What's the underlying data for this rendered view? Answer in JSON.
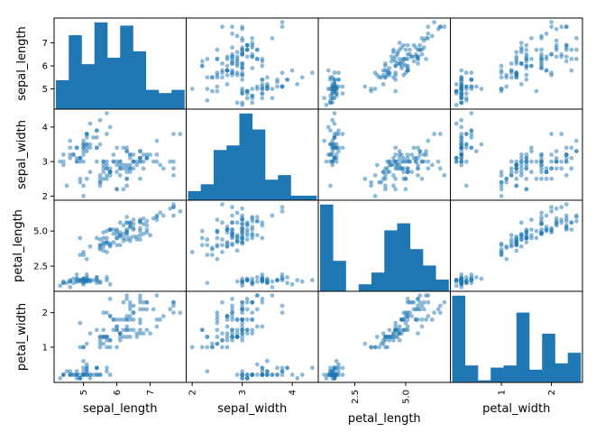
{
  "chart_data": {
    "type": "scatter-matrix",
    "variables": [
      "sepal_length",
      "sepal_width",
      "petal_length",
      "petal_width"
    ],
    "diagonal": "hist",
    "bins": 10,
    "color": "#1f77b4",
    "point_alpha": 0.5,
    "ticks": {
      "sepal_length": [
        5,
        6,
        7
      ],
      "sepal_width": [
        2,
        3,
        4
      ],
      "petal_length": [
        2.5,
        5.0
      ],
      "petal_width": [
        1,
        2
      ]
    },
    "tick_labels": {
      "sepal_length": [
        "5",
        "6",
        "7"
      ],
      "sepal_width": [
        "2",
        "3",
        "4"
      ],
      "petal_length": [
        "2.5",
        "5.0"
      ],
      "petal_width": [
        "1",
        "2"
      ]
    },
    "rows": [
      [
        5.1,
        3.5,
        1.4,
        0.2
      ],
      [
        4.9,
        3.0,
        1.4,
        0.2
      ],
      [
        4.7,
        3.2,
        1.3,
        0.2
      ],
      [
        4.6,
        3.1,
        1.5,
        0.2
      ],
      [
        5.0,
        3.6,
        1.4,
        0.2
      ],
      [
        5.4,
        3.9,
        1.7,
        0.4
      ],
      [
        4.6,
        3.4,
        1.4,
        0.3
      ],
      [
        5.0,
        3.4,
        1.5,
        0.2
      ],
      [
        4.4,
        2.9,
        1.4,
        0.2
      ],
      [
        4.9,
        3.1,
        1.5,
        0.1
      ],
      [
        5.4,
        3.7,
        1.5,
        0.2
      ],
      [
        4.8,
        3.4,
        1.6,
        0.2
      ],
      [
        4.8,
        3.0,
        1.4,
        0.1
      ],
      [
        4.3,
        3.0,
        1.1,
        0.1
      ],
      [
        5.8,
        4.0,
        1.2,
        0.2
      ],
      [
        5.7,
        4.4,
        1.5,
        0.4
      ],
      [
        5.4,
        3.9,
        1.3,
        0.4
      ],
      [
        5.1,
        3.5,
        1.4,
        0.3
      ],
      [
        5.7,
        3.8,
        1.7,
        0.3
      ],
      [
        5.1,
        3.8,
        1.5,
        0.3
      ],
      [
        5.4,
        3.4,
        1.7,
        0.2
      ],
      [
        5.1,
        3.7,
        1.5,
        0.4
      ],
      [
        4.6,
        3.6,
        1.0,
        0.2
      ],
      [
        5.1,
        3.3,
        1.7,
        0.5
      ],
      [
        4.8,
        3.4,
        1.9,
        0.2
      ],
      [
        5.0,
        3.0,
        1.6,
        0.2
      ],
      [
        5.0,
        3.4,
        1.6,
        0.4
      ],
      [
        5.2,
        3.5,
        1.5,
        0.2
      ],
      [
        5.2,
        3.4,
        1.4,
        0.2
      ],
      [
        4.7,
        3.2,
        1.6,
        0.2
      ],
      [
        4.8,
        3.1,
        1.6,
        0.2
      ],
      [
        5.4,
        3.4,
        1.5,
        0.4
      ],
      [
        5.2,
        4.1,
        1.5,
        0.1
      ],
      [
        5.5,
        4.2,
        1.4,
        0.2
      ],
      [
        4.9,
        3.1,
        1.5,
        0.1
      ],
      [
        5.0,
        3.2,
        1.2,
        0.2
      ],
      [
        5.5,
        3.5,
        1.3,
        0.2
      ],
      [
        4.9,
        3.1,
        1.5,
        0.1
      ],
      [
        4.4,
        3.0,
        1.3,
        0.2
      ],
      [
        5.1,
        3.4,
        1.5,
        0.2
      ],
      [
        5.0,
        3.5,
        1.3,
        0.3
      ],
      [
        4.5,
        2.3,
        1.3,
        0.3
      ],
      [
        4.4,
        3.2,
        1.3,
        0.2
      ],
      [
        5.0,
        3.5,
        1.6,
        0.6
      ],
      [
        5.1,
        3.8,
        1.9,
        0.4
      ],
      [
        4.8,
        3.0,
        1.4,
        0.3
      ],
      [
        5.1,
        3.8,
        1.6,
        0.2
      ],
      [
        4.6,
        3.2,
        1.4,
        0.2
      ],
      [
        5.3,
        3.7,
        1.5,
        0.2
      ],
      [
        5.0,
        3.3,
        1.4,
        0.2
      ],
      [
        7.0,
        3.2,
        4.7,
        1.4
      ],
      [
        6.4,
        3.2,
        4.5,
        1.5
      ],
      [
        6.9,
        3.1,
        4.9,
        1.5
      ],
      [
        5.5,
        2.3,
        4.0,
        1.3
      ],
      [
        6.5,
        2.8,
        4.6,
        1.5
      ],
      [
        5.7,
        2.8,
        4.5,
        1.3
      ],
      [
        6.3,
        3.3,
        4.7,
        1.6
      ],
      [
        4.9,
        2.4,
        3.3,
        1.0
      ],
      [
        6.6,
        2.9,
        4.6,
        1.3
      ],
      [
        5.2,
        2.7,
        3.9,
        1.4
      ],
      [
        5.0,
        2.0,
        3.5,
        1.0
      ],
      [
        5.9,
        3.0,
        4.2,
        1.5
      ],
      [
        6.0,
        2.2,
        4.0,
        1.0
      ],
      [
        6.1,
        2.9,
        4.7,
        1.4
      ],
      [
        5.6,
        2.9,
        3.6,
        1.3
      ],
      [
        6.7,
        3.1,
        4.4,
        1.4
      ],
      [
        5.6,
        3.0,
        4.5,
        1.5
      ],
      [
        5.8,
        2.7,
        4.1,
        1.0
      ],
      [
        6.2,
        2.2,
        4.5,
        1.5
      ],
      [
        5.6,
        2.5,
        3.9,
        1.1
      ],
      [
        5.9,
        3.2,
        4.8,
        1.8
      ],
      [
        6.1,
        2.8,
        4.0,
        1.3
      ],
      [
        6.3,
        2.5,
        4.9,
        1.5
      ],
      [
        6.1,
        2.8,
        4.7,
        1.2
      ],
      [
        6.4,
        2.9,
        4.3,
        1.3
      ],
      [
        6.6,
        3.0,
        4.4,
        1.4
      ],
      [
        6.8,
        2.8,
        4.8,
        1.4
      ],
      [
        6.7,
        3.0,
        5.0,
        1.7
      ],
      [
        6.0,
        2.9,
        4.5,
        1.5
      ],
      [
        5.7,
        2.6,
        3.5,
        1.0
      ],
      [
        5.5,
        2.4,
        3.8,
        1.1
      ],
      [
        5.5,
        2.4,
        3.7,
        1.0
      ],
      [
        5.8,
        2.7,
        3.9,
        1.2
      ],
      [
        6.0,
        2.7,
        5.1,
        1.6
      ],
      [
        5.4,
        3.0,
        4.5,
        1.5
      ],
      [
        6.0,
        3.4,
        4.5,
        1.6
      ],
      [
        6.7,
        3.1,
        4.7,
        1.5
      ],
      [
        6.3,
        2.3,
        4.4,
        1.3
      ],
      [
        5.6,
        3.0,
        4.1,
        1.3
      ],
      [
        5.5,
        2.5,
        4.0,
        1.3
      ],
      [
        5.5,
        2.6,
        4.4,
        1.2
      ],
      [
        6.1,
        3.0,
        4.6,
        1.4
      ],
      [
        5.8,
        2.6,
        4.0,
        1.2
      ],
      [
        5.0,
        2.3,
        3.3,
        1.0
      ],
      [
        5.6,
        2.7,
        4.2,
        1.3
      ],
      [
        5.7,
        3.0,
        4.2,
        1.2
      ],
      [
        5.7,
        2.9,
        4.2,
        1.3
      ],
      [
        6.2,
        2.9,
        4.3,
        1.3
      ],
      [
        5.1,
        2.5,
        3.0,
        1.1
      ],
      [
        5.7,
        2.8,
        4.1,
        1.3
      ],
      [
        6.3,
        3.3,
        6.0,
        2.5
      ],
      [
        5.8,
        2.7,
        5.1,
        1.9
      ],
      [
        7.1,
        3.0,
        5.9,
        2.1
      ],
      [
        6.3,
        2.9,
        5.6,
        1.8
      ],
      [
        6.5,
        3.0,
        5.8,
        2.2
      ],
      [
        7.6,
        3.0,
        6.6,
        2.1
      ],
      [
        4.9,
        2.5,
        4.5,
        1.7
      ],
      [
        7.3,
        2.9,
        6.3,
        1.8
      ],
      [
        6.7,
        2.5,
        5.8,
        1.8
      ],
      [
        7.2,
        3.6,
        6.1,
        2.5
      ],
      [
        6.5,
        3.2,
        5.1,
        2.0
      ],
      [
        6.4,
        2.7,
        5.3,
        1.9
      ],
      [
        6.8,
        3.0,
        5.5,
        2.1
      ],
      [
        5.7,
        2.5,
        5.0,
        2.0
      ],
      [
        5.8,
        2.8,
        5.1,
        2.4
      ],
      [
        6.4,
        3.2,
        5.3,
        2.3
      ],
      [
        6.5,
        3.0,
        5.5,
        1.8
      ],
      [
        7.7,
        3.8,
        6.7,
        2.2
      ],
      [
        7.7,
        2.6,
        6.9,
        2.3
      ],
      [
        6.0,
        2.2,
        5.0,
        1.5
      ],
      [
        6.9,
        3.2,
        5.7,
        2.3
      ],
      [
        5.6,
        2.8,
        4.9,
        2.0
      ],
      [
        7.7,
        2.8,
        6.7,
        2.0
      ],
      [
        6.3,
        2.7,
        4.9,
        1.8
      ],
      [
        6.7,
        3.3,
        5.7,
        2.1
      ],
      [
        7.2,
        3.2,
        6.0,
        1.8
      ],
      [
        6.2,
        2.8,
        4.8,
        1.8
      ],
      [
        6.1,
        3.0,
        4.9,
        1.8
      ],
      [
        6.4,
        2.8,
        5.6,
        2.1
      ],
      [
        7.2,
        3.0,
        5.8,
        1.6
      ],
      [
        7.4,
        2.8,
        6.1,
        1.9
      ],
      [
        7.9,
        3.8,
        6.4,
        2.0
      ],
      [
        6.4,
        2.8,
        5.6,
        2.2
      ],
      [
        6.3,
        2.8,
        5.1,
        1.5
      ],
      [
        6.1,
        2.6,
        5.6,
        1.4
      ],
      [
        7.7,
        3.0,
        6.1,
        2.3
      ],
      [
        6.3,
        3.4,
        5.6,
        2.4
      ],
      [
        6.4,
        3.1,
        5.5,
        1.8
      ],
      [
        6.0,
        3.0,
        4.8,
        1.8
      ],
      [
        6.9,
        3.1,
        5.4,
        2.1
      ],
      [
        6.7,
        3.1,
        5.6,
        2.4
      ],
      [
        6.9,
        3.1,
        5.1,
        2.3
      ],
      [
        5.8,
        2.7,
        5.1,
        1.9
      ],
      [
        6.8,
        3.2,
        5.9,
        2.3
      ],
      [
        6.7,
        3.3,
        5.7,
        2.5
      ],
      [
        6.7,
        3.0,
        5.2,
        2.3
      ],
      [
        6.3,
        2.5,
        5.0,
        1.9
      ],
      [
        6.5,
        3.0,
        5.2,
        2.0
      ],
      [
        6.2,
        3.4,
        5.4,
        2.3
      ],
      [
        5.9,
        3.0,
        5.1,
        1.8
      ]
    ]
  }
}
